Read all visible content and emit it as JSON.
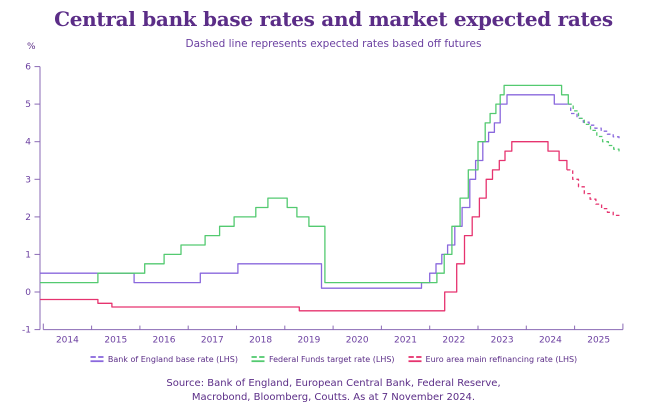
{
  "colors": {
    "background": "#ffffff",
    "title": "#5b2d87",
    "subtitle": "#6a3fa0",
    "axis": "#8a6ab5",
    "tick_label": "#6b3fa0",
    "legend_text": "#5b2d87",
    "source_text": "#5b2d87"
  },
  "chart_data": {
    "type": "line",
    "title": "Central bank base rates and market expected rates",
    "subtitle": "Dashed line represents expected rates based off futures",
    "y_unit": "%",
    "ylim": [
      -1,
      6
    ],
    "y_ticks": [
      -1,
      0,
      1,
      2,
      3,
      4,
      5,
      6
    ],
    "x_tick_years": [
      2014,
      2015,
      2016,
      2017,
      2018,
      2019,
      2020,
      2021,
      2022,
      2023,
      2024,
      2025
    ],
    "x_range": [
      2013.93,
      2025.92
    ],
    "grid": false,
    "legend_position": "bottom",
    "series": [
      {
        "id": "boe",
        "name": "Bank of England base rate (LHS)",
        "color": "#8a68dd",
        "solid_steps": [
          [
            2013.93,
            0.5
          ],
          [
            2015.88,
            0.25
          ],
          [
            2017.25,
            0.5
          ],
          [
            2018.03,
            0.75
          ],
          [
            2019.76,
            0.1
          ],
          [
            2021.83,
            0.25
          ],
          [
            2022.0,
            0.5
          ],
          [
            2022.13,
            0.75
          ],
          [
            2022.25,
            1.0
          ],
          [
            2022.37,
            1.25
          ],
          [
            2022.52,
            1.75
          ],
          [
            2022.67,
            2.25
          ],
          [
            2022.83,
            3.0
          ],
          [
            2022.95,
            3.5
          ],
          [
            2023.1,
            4.0
          ],
          [
            2023.22,
            4.25
          ],
          [
            2023.34,
            4.5
          ],
          [
            2023.46,
            5.0
          ],
          [
            2023.6,
            5.25
          ],
          [
            2024.58,
            5.0
          ],
          [
            2024.86,
            5.0
          ]
        ],
        "dashed_steps": [
          [
            2024.86,
            5.0
          ],
          [
            2024.92,
            4.75
          ],
          [
            2025.05,
            4.62
          ],
          [
            2025.18,
            4.52
          ],
          [
            2025.3,
            4.44
          ],
          [
            2025.42,
            4.36
          ],
          [
            2025.55,
            4.28
          ],
          [
            2025.68,
            4.2
          ],
          [
            2025.8,
            4.13
          ],
          [
            2025.92,
            4.08
          ]
        ]
      },
      {
        "id": "fed",
        "name": "Federal Funds target rate (LHS)",
        "color": "#53ca70",
        "solid_steps": [
          [
            2013.93,
            0.25
          ],
          [
            2015.13,
            0.5
          ],
          [
            2016.1,
            0.75
          ],
          [
            2016.5,
            1.0
          ],
          [
            2016.85,
            1.25
          ],
          [
            2017.35,
            1.5
          ],
          [
            2017.65,
            1.75
          ],
          [
            2017.95,
            2.0
          ],
          [
            2018.4,
            2.25
          ],
          [
            2018.65,
            2.5
          ],
          [
            2019.05,
            2.25
          ],
          [
            2019.25,
            2.0
          ],
          [
            2019.5,
            1.75
          ],
          [
            2019.83,
            0.25
          ],
          [
            2022.15,
            0.5
          ],
          [
            2022.3,
            1.0
          ],
          [
            2022.46,
            1.75
          ],
          [
            2022.63,
            2.5
          ],
          [
            2022.8,
            3.25
          ],
          [
            2023.0,
            4.0
          ],
          [
            2023.15,
            4.5
          ],
          [
            2023.25,
            4.75
          ],
          [
            2023.37,
            5.0
          ],
          [
            2023.46,
            5.25
          ],
          [
            2023.54,
            5.5
          ],
          [
            2024.73,
            5.25
          ],
          [
            2024.87,
            5.0
          ]
        ],
        "dashed_steps": [
          [
            2024.87,
            5.0
          ],
          [
            2024.97,
            4.82
          ],
          [
            2025.08,
            4.62
          ],
          [
            2025.2,
            4.46
          ],
          [
            2025.33,
            4.3
          ],
          [
            2025.46,
            4.14
          ],
          [
            2025.58,
            4.0
          ],
          [
            2025.7,
            3.9
          ],
          [
            2025.81,
            3.8
          ],
          [
            2025.92,
            3.72
          ]
        ]
      },
      {
        "id": "ecb",
        "name": "Euro area main refinancing rate (LHS)",
        "color": "#e6336f",
        "solid_steps": [
          [
            2013.93,
            -0.2
          ],
          [
            2015.13,
            -0.3
          ],
          [
            2015.42,
            -0.4
          ],
          [
            2019.3,
            -0.5
          ],
          [
            2022.31,
            0.0
          ],
          [
            2022.56,
            0.75
          ],
          [
            2022.72,
            1.5
          ],
          [
            2022.88,
            2.0
          ],
          [
            2023.03,
            2.5
          ],
          [
            2023.17,
            3.0
          ],
          [
            2023.3,
            3.25
          ],
          [
            2023.44,
            3.5
          ],
          [
            2023.56,
            3.75
          ],
          [
            2023.7,
            4.0
          ],
          [
            2024.45,
            3.75
          ],
          [
            2024.68,
            3.5
          ],
          [
            2024.84,
            3.25
          ]
        ],
        "dashed_steps": [
          [
            2024.84,
            3.25
          ],
          [
            2024.96,
            3.0
          ],
          [
            2025.08,
            2.8
          ],
          [
            2025.2,
            2.62
          ],
          [
            2025.32,
            2.47
          ],
          [
            2025.44,
            2.34
          ],
          [
            2025.56,
            2.22
          ],
          [
            2025.68,
            2.12
          ],
          [
            2025.8,
            2.04
          ],
          [
            2025.92,
            2.0
          ]
        ]
      }
    ]
  },
  "source": {
    "line1": "Source: Bank of England, European Central Bank, Federal Reserve,",
    "line2": "Macrobond, Bloomberg, Coutts. As at 7 November 2024."
  }
}
